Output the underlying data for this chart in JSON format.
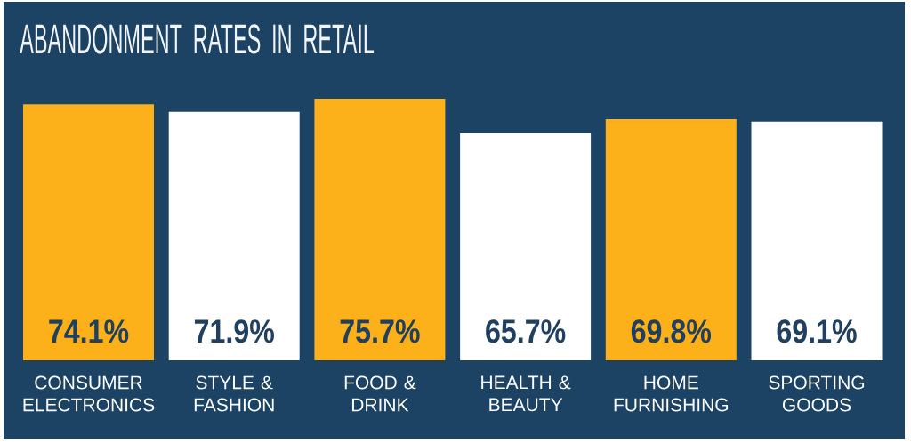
{
  "chart_data": {
    "type": "bar",
    "title": "ABANDONMENT RATES IN RETAIL",
    "categories": [
      "CONSUMER ELECTRONICS",
      "STYLE & FASHION",
      "FOOD & DRINK",
      "HEALTH & BEAUTY",
      "HOME FURNISHING",
      "SPORTING GOODS"
    ],
    "values": [
      74.1,
      71.9,
      75.7,
      65.7,
      69.8,
      69.1
    ],
    "colors": [
      "#fcb11b",
      "#ffffff",
      "#fcb11b",
      "#ffffff",
      "#fcb11b",
      "#ffffff"
    ],
    "value_labels": [
      "74.1%",
      "71.9%",
      "75.7%",
      "65.7%",
      "69.8%",
      "69.1%"
    ],
    "tick_labels": "x"
  }
}
